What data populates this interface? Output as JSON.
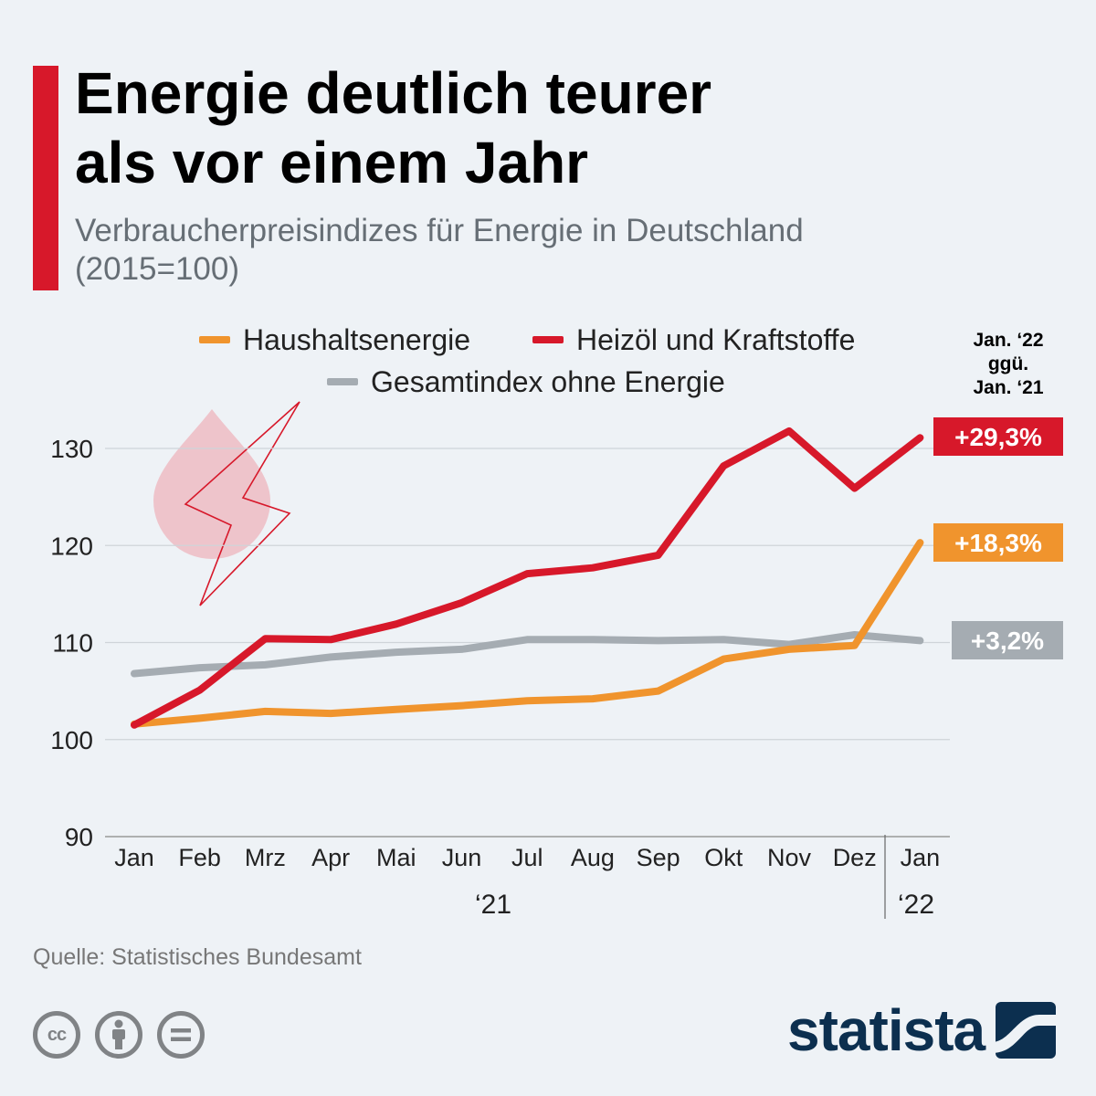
{
  "header": {
    "title_line1": "Energie deutlich teurer",
    "title_line2": "als vor einem Jahr",
    "subtitle_line1": "Verbraucherpreisindizes für Energie in Deutschland",
    "subtitle_line2": "(2015=100)"
  },
  "comparison_header": {
    "line1": "Jan. ‘22",
    "line2": "ggü.",
    "line3": "Jan. ‘21"
  },
  "chart_data": {
    "type": "line",
    "title": "Energie deutlich teurer als vor einem Jahr",
    "subtitle": "Verbraucherpreisindizes für Energie in Deutschland (2015=100)",
    "categories": [
      "Jan",
      "Feb",
      "Mrz",
      "Apr",
      "Mai",
      "Jun",
      "Jul",
      "Aug",
      "Sep",
      "Okt",
      "Nov",
      "Dez",
      "Jan"
    ],
    "year_labels": [
      "‘21",
      "‘22"
    ],
    "xlabel": "",
    "ylabel": "",
    "ylim": [
      90,
      130
    ],
    "yticks": [
      90,
      100,
      110,
      120,
      130
    ],
    "grid": true,
    "legend_position": "top",
    "series": [
      {
        "name": "Gesamtindex ohne Energie",
        "color": "#a5acb2",
        "values": [
          106.8,
          107.4,
          107.7,
          108.5,
          109.0,
          109.3,
          110.3,
          110.3,
          110.2,
          110.3,
          109.8,
          110.8,
          110.2
        ],
        "change_label": "+3,2%"
      },
      {
        "name": "Haushaltsenergie",
        "color": "#f0942d",
        "values": [
          101.6,
          102.2,
          102.9,
          102.7,
          103.1,
          103.5,
          104.0,
          104.2,
          105.0,
          108.3,
          109.3,
          109.7,
          120.3
        ],
        "change_label": "+18,3%"
      },
      {
        "name": "Heizöl und Kraftstoffe",
        "color": "#d7182a",
        "values": [
          101.5,
          105.1,
          110.4,
          110.3,
          111.9,
          114.1,
          117.1,
          117.7,
          119.0,
          128.2,
          131.8,
          125.9,
          131.1
        ],
        "change_label": "+29,3%"
      }
    ]
  },
  "footer": {
    "source": "Quelle: Statistisches Bundesamt",
    "logo": "statista",
    "icons": [
      "cc-icon",
      "attribution-icon",
      "no-derivatives-icon",
      "statista-logo-icon",
      "oil-drop-icon",
      "lightning-icon"
    ]
  }
}
